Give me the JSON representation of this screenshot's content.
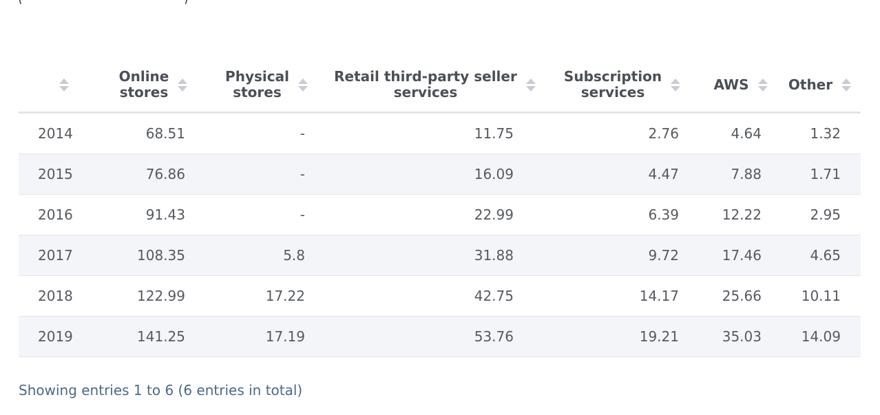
{
  "chart_data": {
    "type": "table",
    "columns": [
      "",
      "Online stores",
      "Physical stores",
      "Retail third-party seller services",
      "Subscription services",
      "AWS",
      "Other"
    ],
    "header_lines": [
      [
        ""
      ],
      [
        "Online",
        "stores"
      ],
      [
        "Physical",
        "stores"
      ],
      [
        "Retail third-party seller",
        "services"
      ],
      [
        "Subscription",
        "services"
      ],
      [
        "AWS"
      ],
      [
        "Other"
      ]
    ],
    "rows": [
      [
        "2014",
        "68.51",
        "-",
        "11.75",
        "2.76",
        "4.64",
        "1.32"
      ],
      [
        "2015",
        "76.86",
        "-",
        "16.09",
        "4.47",
        "7.88",
        "1.71"
      ],
      [
        "2016",
        "91.43",
        "-",
        "22.99",
        "6.39",
        "12.22",
        "2.95"
      ],
      [
        "2017",
        "108.35",
        "5.8",
        "31.88",
        "9.72",
        "17.46",
        "4.65"
      ],
      [
        "2018",
        "122.99",
        "17.22",
        "42.75",
        "14.17",
        "25.66",
        "10.11"
      ],
      [
        "2019",
        "141.25",
        "17.19",
        "53.76",
        "19.21",
        "35.03",
        "14.09"
      ]
    ]
  },
  "footer_text": "Showing entries 1 to 6 (6 entries in total)",
  "top_fragment": {
    "open_paren": "(",
    "close_paren": ")"
  },
  "colors": {
    "header_text": "#4b4f56",
    "cell_text": "#55595f",
    "row_alt_bg": "#f4f5f9",
    "border": "#e3e5ea",
    "sort_arrow": "#c9ccd2",
    "footer_text": "#4a6a86"
  }
}
